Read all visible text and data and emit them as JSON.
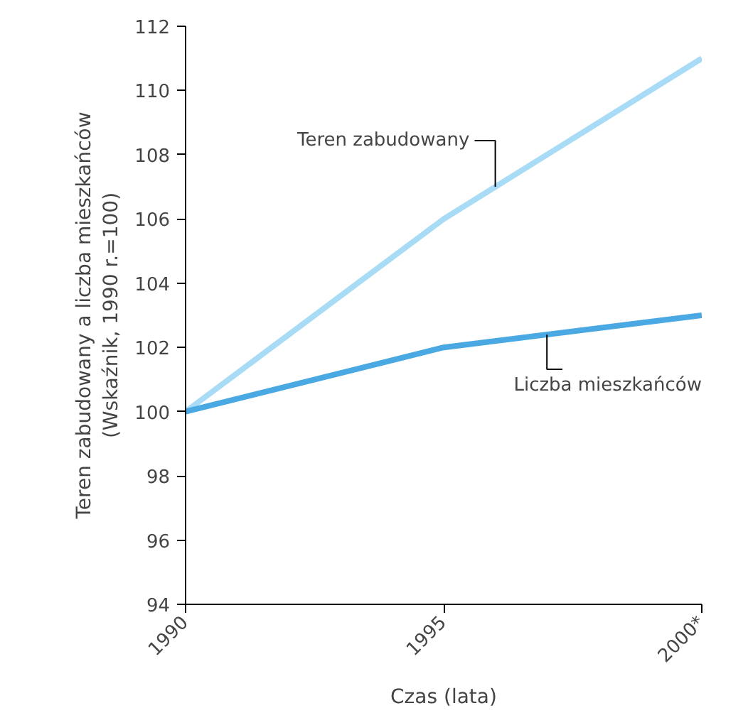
{
  "chart_data": {
    "type": "line",
    "xlabel": "Czas (lata)",
    "ylabel": "Teren zabudowany a liczba mieszkańców\n(Wskaźnik, 1990 r.=100)",
    "x": [
      1990,
      1995,
      2000
    ],
    "xlim": [
      1990,
      2000
    ],
    "xticks": [
      1990,
      1995,
      {
        "value": 2000,
        "label": "2000*"
      }
    ],
    "ylim": [
      94,
      112
    ],
    "yticks": [
      94,
      96,
      98,
      100,
      102,
      104,
      106,
      108,
      110,
      112
    ],
    "grid": false,
    "legend": false,
    "marker": "none",
    "line_style": "solid",
    "series": [
      {
        "name": "Teren zabudowany",
        "color": "#a8dbf5",
        "values": [
          100,
          106,
          111
        ]
      },
      {
        "name": "Liczba mieszkańców",
        "color": "#4aa8e2",
        "values": [
          100,
          102,
          103
        ]
      }
    ]
  }
}
